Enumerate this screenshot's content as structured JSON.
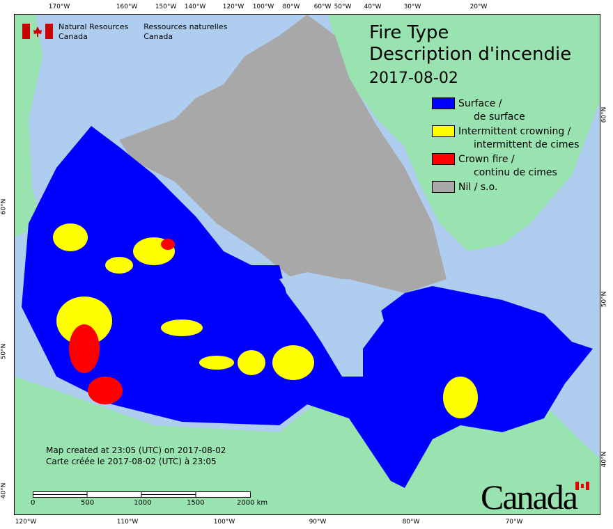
{
  "title": {
    "line1": "Fire Type",
    "line2": "Description d'incendie",
    "date": "2017-08-02"
  },
  "agency": {
    "en_line1": "Natural Resources",
    "en_line2": "Canada",
    "fr_line1": "Ressources naturelles",
    "fr_line2": "Canada"
  },
  "legend": [
    {
      "label": "Surface /",
      "sub": "de surface",
      "color": "#0000ff"
    },
    {
      "label": "Intermittent crowning /",
      "sub": "intermittent de cimes",
      "color": "#ffff00"
    },
    {
      "label": "Crown fire /",
      "sub": "continu de cimes",
      "color": "#ff0000"
    },
    {
      "label": "Nil / s.o.",
      "sub": "",
      "color": "#a8a8a8"
    }
  ],
  "credit": {
    "en": "Map created at 23:05 (UTC) on 2017-08-02",
    "fr": "Carte créée le 2017-08-02 (UTC) à 23:05"
  },
  "scale_bar": {
    "labels": [
      "0",
      "500",
      "1000",
      "1500",
      "2000  km"
    ]
  },
  "wordmark": "Canada",
  "graticule": {
    "top": [
      "170°W",
      "160°W",
      "150°W",
      "140°W",
      "120°W",
      "100°W",
      "80°W",
      "60°W",
      "50°W",
      "40°W",
      "30°W",
      "20°W"
    ],
    "bottom": [
      "120°W",
      "110°W",
      "100°W",
      "90°W",
      "80°W",
      "70°W"
    ],
    "left": [
      "60°N",
      "50°N",
      "40°N"
    ],
    "right": [
      "60°N",
      "50°N",
      "40°N"
    ]
  },
  "colors": {
    "water": "#afcdef",
    "land_foreign": "#98e3b0",
    "surface": "#0000ff",
    "intermittent": "#ffff00",
    "crown": "#ff0000",
    "nil": "#a8a8a8"
  }
}
